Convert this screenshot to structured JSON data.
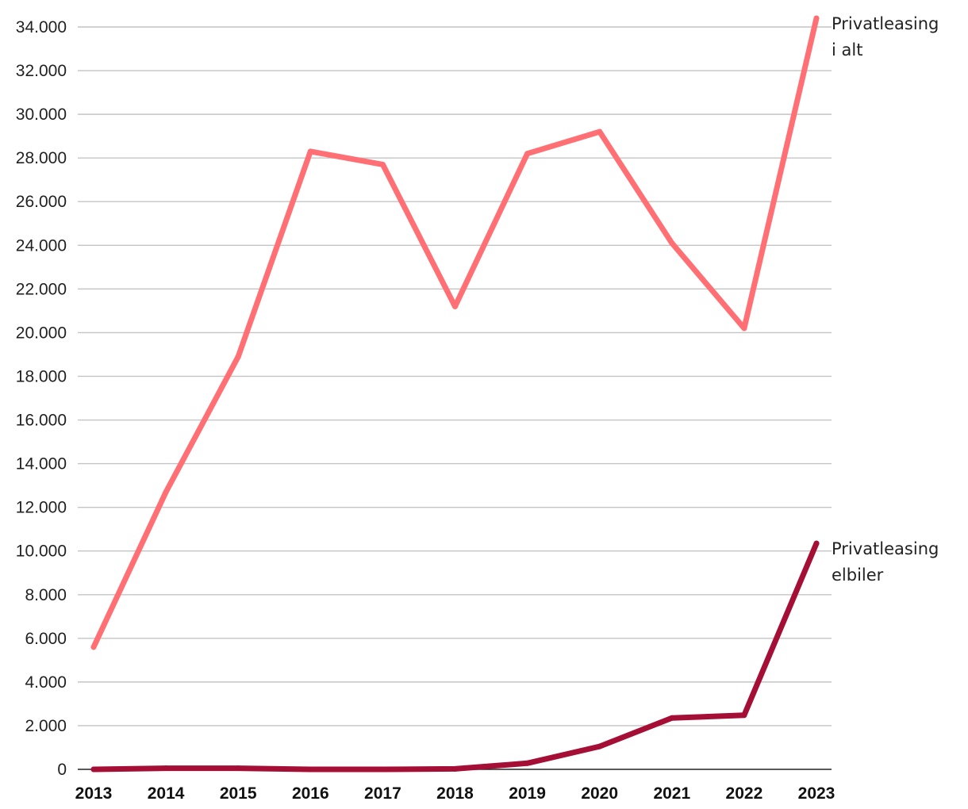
{
  "chart_data": {
    "type": "line",
    "categories": [
      "2013",
      "2014",
      "2015",
      "2016",
      "2017",
      "2018",
      "2019",
      "2020",
      "2021",
      "2022",
      "2023"
    ],
    "y_tick_labels": [
      "0",
      "2.000",
      "4.000",
      "6.000",
      "8.000",
      "10.000",
      "12.000",
      "14.000",
      "16.000",
      "18.000",
      "20.000",
      "22.000",
      "24.000",
      "26.000",
      "28.000",
      "30.000",
      "32.000",
      "34.000"
    ],
    "ylim": [
      0,
      34000
    ],
    "grid": true,
    "legend": "none (series labelled at right end of lines)",
    "series": [
      {
        "name": "Privatleasing i alt",
        "label_lines": [
          "Privatleasing",
          "i alt"
        ],
        "color": "#ff6f74",
        "values": [
          5600,
          12700,
          18900,
          28300,
          27700,
          21200,
          28200,
          29200,
          24100,
          20200,
          34400
        ]
      },
      {
        "name": "Privatleasing elbiler",
        "label_lines": [
          "Privatleasing",
          "elbiler"
        ],
        "color": "#a50e35",
        "values": [
          0,
          50,
          50,
          0,
          0,
          20,
          280,
          1050,
          2350,
          2480,
          10350
        ]
      }
    ]
  }
}
